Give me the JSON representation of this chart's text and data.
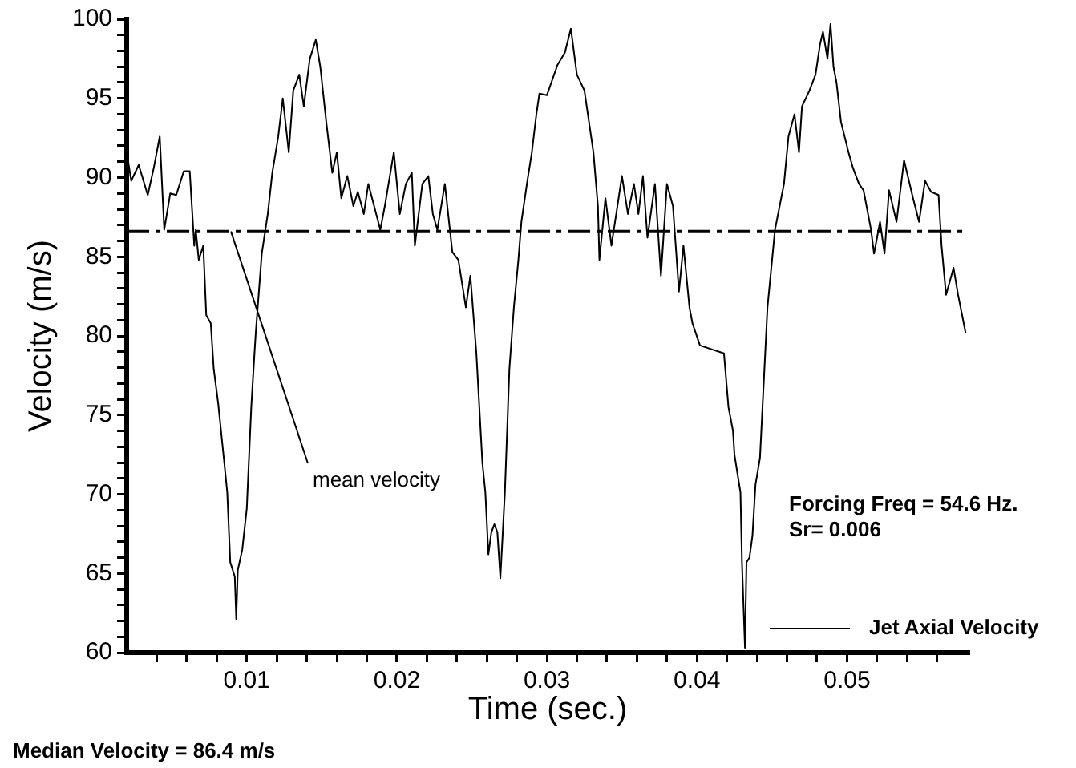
{
  "chart_data": {
    "type": "line",
    "xlabel": "Time (sec.)",
    "ylabel": "Velocity (m/s)",
    "xlim": [
      0.002,
      0.0581
    ],
    "ylim": [
      60,
      100
    ],
    "xticks": [
      {
        "value": 0.004,
        "label": null
      },
      {
        "value": 0.006,
        "label": null
      },
      {
        "value": 0.008,
        "label": null
      },
      0.01,
      {
        "value": 0.012,
        "label": null
      },
      {
        "value": 0.014,
        "label": null
      },
      {
        "value": 0.016,
        "label": null
      },
      {
        "value": 0.018,
        "label": null
      },
      0.02,
      {
        "value": 0.022,
        "label": null
      },
      {
        "value": 0.024,
        "label": null
      },
      {
        "value": 0.026,
        "label": null
      },
      {
        "value": 0.028,
        "label": null
      },
      0.03,
      {
        "value": 0.032,
        "label": null
      },
      {
        "value": 0.034,
        "label": null
      },
      {
        "value": 0.036,
        "label": null
      },
      {
        "value": 0.038,
        "label": null
      },
      0.04,
      {
        "value": 0.042,
        "label": null
      },
      {
        "value": 0.044,
        "label": null
      },
      {
        "value": 0.046,
        "label": null
      },
      {
        "value": 0.048,
        "label": null
      },
      0.05,
      {
        "value": 0.052,
        "label": null
      },
      {
        "value": 0.054,
        "label": null
      },
      {
        "value": 0.056,
        "label": null
      }
    ],
    "yticks": [
      60,
      {
        "value": 61,
        "label": null
      },
      {
        "value": 62,
        "label": null
      },
      {
        "value": 63,
        "label": null
      },
      {
        "value": 64,
        "label": null
      },
      65,
      {
        "value": 66,
        "label": null
      },
      {
        "value": 67,
        "label": null
      },
      {
        "value": 68,
        "label": null
      },
      {
        "value": 69,
        "label": null
      },
      70,
      {
        "value": 71,
        "label": null
      },
      {
        "value": 72,
        "label": null
      },
      {
        "value": 73,
        "label": null
      },
      {
        "value": 74,
        "label": null
      },
      75,
      {
        "value": 76,
        "label": null
      },
      {
        "value": 77,
        "label": null
      },
      {
        "value": 78,
        "label": null
      },
      {
        "value": 79,
        "label": null
      },
      80,
      {
        "value": 81,
        "label": null
      },
      {
        "value": 82,
        "label": null
      },
      {
        "value": 83,
        "label": null
      },
      {
        "value": 84,
        "label": null
      },
      85,
      {
        "value": 86,
        "label": null
      },
      {
        "value": 87,
        "label": null
      },
      {
        "value": 88,
        "label": null
      },
      {
        "value": 89,
        "label": null
      },
      90,
      {
        "value": 91,
        "label": null
      },
      {
        "value": 92,
        "label": null
      },
      {
        "value": 93,
        "label": null
      },
      {
        "value": 94,
        "label": null
      },
      95,
      {
        "value": 96,
        "label": null
      },
      {
        "value": 97,
        "label": null
      },
      {
        "value": 98,
        "label": null
      },
      {
        "value": 99,
        "label": null
      },
      100
    ],
    "grid": false,
    "legend": "bottom right",
    "marker": "none",
    "line_style": "solid",
    "series": [
      {
        "name": "Jet Axial Velocity",
        "color": "#000000",
        "x": [
          0.002,
          0.0023,
          0.0028,
          0.0034,
          0.0038,
          0.0042,
          0.0045,
          0.0049,
          0.0053,
          0.0058,
          0.0062,
          0.0065,
          0.0066,
          0.0068,
          0.0071,
          0.0073,
          0.0076,
          0.0078,
          0.0081,
          0.0085,
          0.0087,
          0.0089,
          0.0092,
          0.0093,
          0.0094,
          0.0097,
          0.01,
          0.0103,
          0.0105,
          0.0106,
          0.011,
          0.0114,
          0.0117,
          0.0121,
          0.0124,
          0.0128,
          0.0131,
          0.0135,
          0.0138,
          0.0142,
          0.0146,
          0.0149,
          0.0153,
          0.0157,
          0.016,
          0.0163,
          0.0167,
          0.0171,
          0.0174,
          0.0178,
          0.0181,
          0.0189,
          0.0192,
          0.0198,
          0.0202,
          0.0206,
          0.021,
          0.0212,
          0.0217,
          0.0221,
          0.0224,
          0.0227,
          0.0232,
          0.0237,
          0.0241,
          0.0246,
          0.0249,
          0.0253,
          0.0257,
          0.0259,
          0.0261,
          0.0263,
          0.0265,
          0.0267,
          0.0269,
          0.0272,
          0.0275,
          0.0278,
          0.0281,
          0.0283,
          0.0287,
          0.029,
          0.0293,
          0.0295,
          0.03,
          0.0307,
          0.0312,
          0.0316,
          0.032,
          0.0325,
          0.0331,
          0.0334,
          0.0335,
          0.0339,
          0.0343,
          0.0347,
          0.035,
          0.0354,
          0.0358,
          0.0361,
          0.0364,
          0.0367,
          0.0372,
          0.0376,
          0.038,
          0.0384,
          0.0388,
          0.0391,
          0.0395,
          0.0397,
          0.0402,
          0.0418,
          0.0421,
          0.0424,
          0.0425,
          0.0429,
          0.043,
          0.0432,
          0.0433,
          0.0435,
          0.0437,
          0.0439,
          0.0442,
          0.0447,
          0.0452,
          0.0458,
          0.0461,
          0.0465,
          0.0468,
          0.047,
          0.0475,
          0.0479,
          0.0482,
          0.0484,
          0.0487,
          0.0489,
          0.0491,
          0.0493,
          0.0496,
          0.0501,
          0.0504,
          0.0508,
          0.0511,
          0.0516,
          0.0518,
          0.0522,
          0.0525,
          0.0528,
          0.0533,
          0.0538,
          0.0544,
          0.0548,
          0.0552,
          0.0556,
          0.0561,
          0.0563,
          0.0566,
          0.0571,
          0.0574,
          0.0579
        ],
        "values": [
          91.6,
          89.8,
          90.8,
          88.9,
          90.6,
          92.6,
          86.7,
          89.0,
          88.9,
          90.4,
          90.4,
          85.7,
          86.7,
          84.8,
          85.7,
          81.3,
          80.8,
          77.9,
          75.7,
          72.0,
          70.1,
          65.7,
          64.8,
          62.1,
          65.2,
          66.5,
          69.1,
          75.5,
          78.7,
          80.2,
          85.2,
          87.7,
          90.3,
          92.6,
          95.0,
          91.6,
          95.5,
          96.5,
          94.5,
          97.5,
          98.7,
          97.0,
          93.5,
          90.3,
          91.6,
          88.7,
          90.1,
          88.2,
          89.1,
          87.7,
          89.6,
          86.7,
          88.2,
          91.6,
          87.7,
          89.6,
          90.3,
          85.7,
          89.6,
          90.1,
          87.7,
          86.7,
          89.6,
          85.3,
          84.8,
          81.8,
          83.8,
          78.9,
          72.0,
          70.1,
          66.2,
          67.6,
          68.1,
          67.6,
          64.7,
          70.1,
          77.9,
          81.8,
          84.8,
          87.2,
          89.8,
          91.6,
          94.0,
          95.3,
          95.2,
          97.1,
          97.9,
          99.4,
          96.5,
          95.5,
          91.6,
          88.2,
          84.8,
          88.7,
          85.7,
          88.2,
          90.1,
          87.7,
          89.6,
          87.7,
          90.1,
          86.2,
          89.6,
          83.8,
          89.6,
          88.2,
          82.8,
          85.7,
          81.8,
          80.8,
          79.4,
          78.9,
          75.5,
          74.0,
          72.5,
          70.1,
          65.7,
          60.3,
          65.7,
          66.0,
          67.4,
          70.6,
          72.3,
          81.8,
          86.7,
          89.6,
          92.6,
          94.0,
          91.6,
          94.5,
          95.5,
          96.5,
          98.4,
          99.2,
          97.5,
          99.7,
          97.0,
          96.0,
          93.5,
          91.6,
          90.6,
          89.6,
          89.2,
          86.7,
          85.2,
          87.2,
          85.2,
          89.2,
          87.2,
          91.1,
          88.7,
          87.2,
          89.8,
          89.1,
          88.9,
          85.7,
          82.6,
          84.3,
          82.6,
          80.2
        ]
      }
    ],
    "ref_lines": [
      {
        "axis": "y",
        "value": 86.6,
        "label": "mean velocity",
        "color": "#000000",
        "line_style": "dashed"
      }
    ],
    "annotations": [
      "Forcing Freq = 54.6 Hz.",
      "Sr= 0.006",
      "Median Velocity = 86.4 m/s"
    ]
  }
}
